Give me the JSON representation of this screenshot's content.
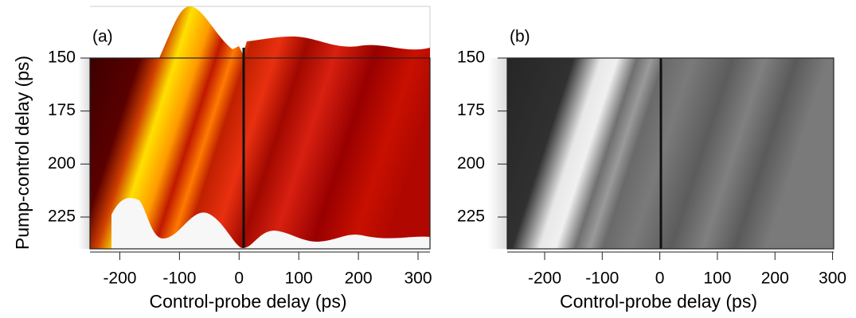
{
  "chart_data": [
    {
      "type": "heatmap",
      "panel_label": "(a)",
      "xlabel": "Control-probe delay (ps)",
      "ylabel": "Pump-control delay (ps)",
      "xlim": [
        -250,
        320
      ],
      "xticks": [
        -200,
        -100,
        0,
        100,
        200,
        300
      ],
      "ylim": [
        240,
        150
      ],
      "yticks": [
        150,
        175,
        200,
        225
      ],
      "colormap": "hot"
    },
    {
      "type": "heatmap",
      "panel_label": "(b)",
      "xlabel": "Control-probe delay (ps)",
      "xlim": [
        -265,
        302
      ],
      "xticks": [
        -200,
        -100,
        0,
        100,
        200,
        300
      ],
      "ylim": [
        240,
        150
      ],
      "yticks": [
        150,
        175,
        200,
        225
      ],
      "colormap": "gray"
    }
  ]
}
